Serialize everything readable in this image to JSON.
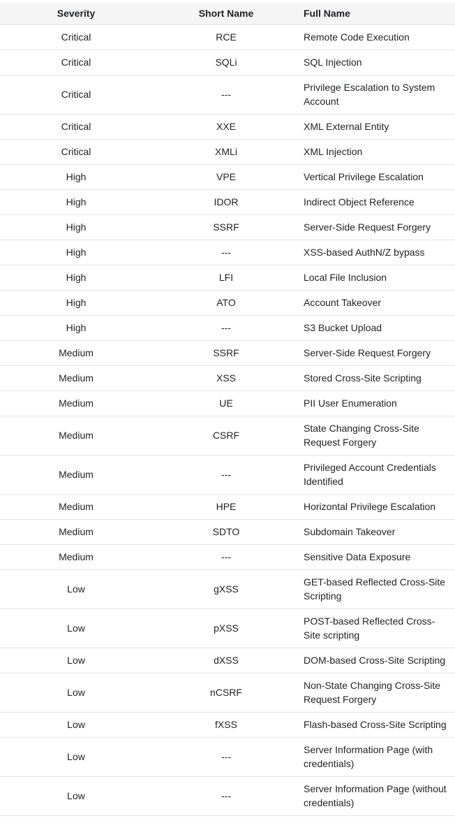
{
  "table": {
    "headers": {
      "severity": "Severity",
      "short_name": "Short Name",
      "full_name": "Full Name"
    },
    "rows": [
      {
        "severity": "Critical",
        "short_name": "RCE",
        "full_name": "Remote Code Execution"
      },
      {
        "severity": "Critical",
        "short_name": "SQLi",
        "full_name": "SQL Injection"
      },
      {
        "severity": "Critical",
        "short_name": "---",
        "full_name": "Privilege Escalation to System\nAccount"
      },
      {
        "severity": "Critical",
        "short_name": "XXE",
        "full_name": "XML External Entity"
      },
      {
        "severity": "Critical",
        "short_name": "XMLi",
        "full_name": "XML Injection"
      },
      {
        "severity": "High",
        "short_name": "VPE",
        "full_name": "Vertical Privilege Escalation"
      },
      {
        "severity": "High",
        "short_name": "IDOR",
        "full_name": "Indirect Object Reference"
      },
      {
        "severity": "High",
        "short_name": "SSRF",
        "full_name": "Server-Side Request Forgery"
      },
      {
        "severity": "High",
        "short_name": "---",
        "full_name": "XSS-based AuthN/Z bypass"
      },
      {
        "severity": "High",
        "short_name": "LFI",
        "full_name": "Local File Inclusion"
      },
      {
        "severity": "High",
        "short_name": "ATO",
        "full_name": "Account Takeover"
      },
      {
        "severity": "High",
        "short_name": "---",
        "full_name": "S3 Bucket Upload"
      },
      {
        "severity": "Medium",
        "short_name": "SSRF",
        "full_name": "Server-Side Request Forgery"
      },
      {
        "severity": "Medium",
        "short_name": "XSS",
        "full_name": "Stored Cross-Site Scripting"
      },
      {
        "severity": "Medium",
        "short_name": "UE",
        "full_name": "PII User Enumeration"
      },
      {
        "severity": "Medium",
        "short_name": "CSRF",
        "full_name": "State Changing Cross-Site\nRequest Forgery"
      },
      {
        "severity": "Medium",
        "short_name": "---",
        "full_name": "Privileged Account Credentials\nIdentified"
      },
      {
        "severity": "Medium",
        "short_name": "HPE",
        "full_name": "Horizontal Privilege Escalation"
      },
      {
        "severity": "Medium",
        "short_name": "SDTO",
        "full_name": "Subdomain Takeover"
      },
      {
        "severity": "Medium",
        "short_name": "---",
        "full_name": "Sensitive Data Exposure"
      },
      {
        "severity": "Low",
        "short_name": "gXSS",
        "full_name": "GET-based Reflected Cross-Site\nScripting"
      },
      {
        "severity": "Low",
        "short_name": "pXSS",
        "full_name": "POST-based Reflected Cross-\nSite scripting"
      },
      {
        "severity": "Low",
        "short_name": "dXSS",
        "full_name": "DOM-based Cross-Site Scripting"
      },
      {
        "severity": "Low",
        "short_name": "nCSRF",
        "full_name": "Non-State Changing Cross-Site\nRequest Forgery"
      },
      {
        "severity": "Low",
        "short_name": "fXSS",
        "full_name": "Flash-based Cross-Site Scripting"
      },
      {
        "severity": "Low",
        "short_name": "---",
        "full_name": "Server Information Page (with\ncredentials)"
      },
      {
        "severity": "Low",
        "short_name": "---",
        "full_name": "Server Information Page (without\ncredentials)"
      }
    ]
  },
  "colors": {
    "header_bg": "#f5f5f5",
    "border": "#e4e4e4",
    "text": "#1f2023"
  }
}
